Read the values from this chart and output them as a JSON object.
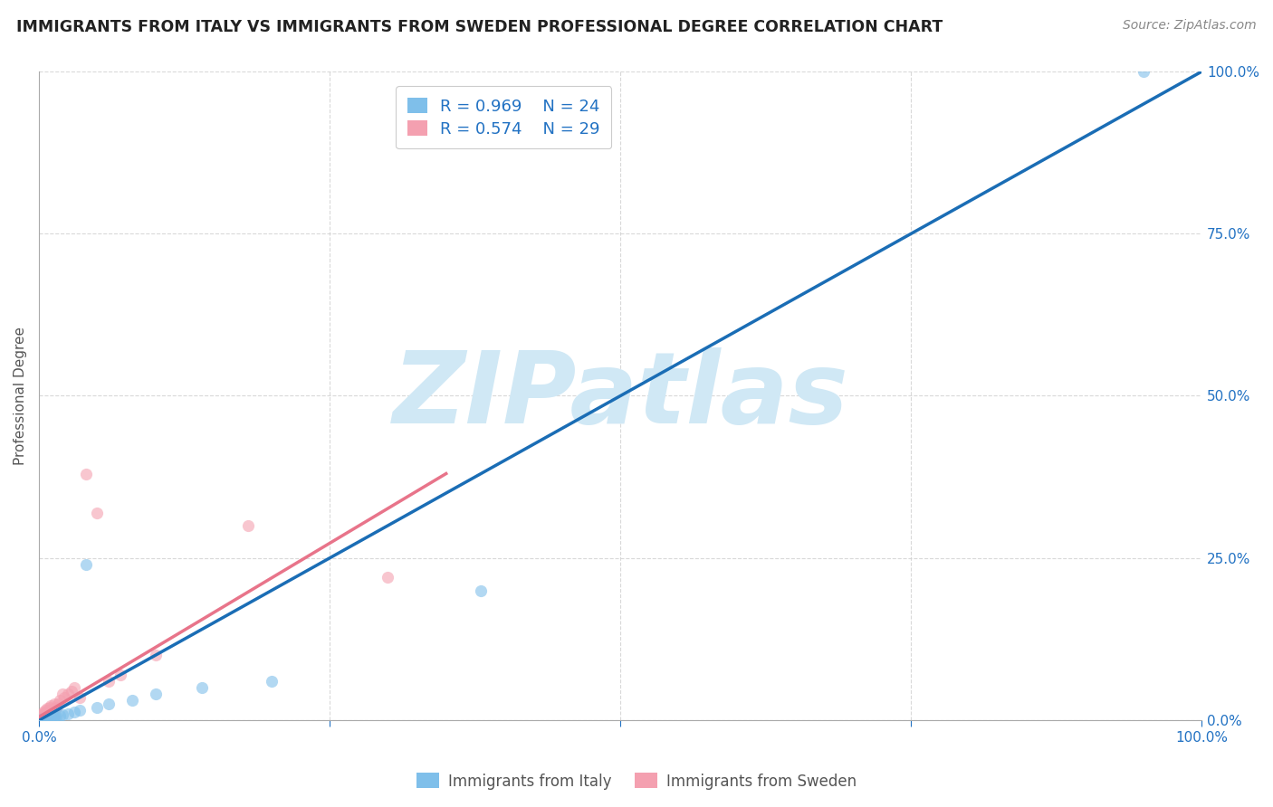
{
  "title": "IMMIGRANTS FROM ITALY VS IMMIGRANTS FROM SWEDEN PROFESSIONAL DEGREE CORRELATION CHART",
  "source": "Source: ZipAtlas.com",
  "ylabel": "Professional Degree",
  "xlim": [
    0,
    1
  ],
  "ylim": [
    0,
    1
  ],
  "italy_color": "#7fbfea",
  "sweden_color": "#f4a0b0",
  "italy_R": 0.969,
  "italy_N": 24,
  "sweden_R": 0.574,
  "sweden_N": 29,
  "italy_scatter_x": [
    0.0,
    0.002,
    0.003,
    0.005,
    0.007,
    0.008,
    0.01,
    0.012,
    0.013,
    0.015,
    0.018,
    0.02,
    0.025,
    0.03,
    0.035,
    0.04,
    0.05,
    0.06,
    0.08,
    0.1,
    0.14,
    0.2,
    0.38,
    0.95
  ],
  "italy_scatter_y": [
    0.0,
    0.001,
    0.002,
    0.003,
    0.004,
    0.003,
    0.005,
    0.004,
    0.006,
    0.005,
    0.007,
    0.008,
    0.01,
    0.012,
    0.015,
    0.24,
    0.02,
    0.025,
    0.03,
    0.04,
    0.05,
    0.06,
    0.2,
    1.0
  ],
  "sweden_scatter_x": [
    0.0,
    0.001,
    0.002,
    0.003,
    0.004,
    0.005,
    0.006,
    0.007,
    0.008,
    0.009,
    0.01,
    0.012,
    0.013,
    0.015,
    0.016,
    0.018,
    0.02,
    0.022,
    0.025,
    0.028,
    0.03,
    0.035,
    0.04,
    0.05,
    0.06,
    0.07,
    0.1,
    0.18,
    0.3
  ],
  "sweden_scatter_y": [
    0.0,
    0.005,
    0.008,
    0.01,
    0.012,
    0.015,
    0.013,
    0.018,
    0.016,
    0.02,
    0.022,
    0.018,
    0.025,
    0.02,
    0.025,
    0.03,
    0.04,
    0.035,
    0.04,
    0.045,
    0.05,
    0.035,
    0.38,
    0.32,
    0.06,
    0.07,
    0.1,
    0.3,
    0.22
  ],
  "italy_line_x": [
    0.0,
    1.0
  ],
  "italy_line_y": [
    0.0,
    1.0
  ],
  "italy_line_color": "#1a6db5",
  "sweden_line_x": [
    0.0,
    0.35
  ],
  "sweden_line_y": [
    0.005,
    0.38
  ],
  "sweden_line_color": "#e8748a",
  "diag_line_color": "#c0c0c0",
  "watermark_text": "ZIPatlas",
  "watermark_color": "#d0e8f5",
  "legend_italy_label": "Immigrants from Italy",
  "legend_sweden_label": "Immigrants from Sweden",
  "title_fontsize": 12.5,
  "axis_label_fontsize": 11,
  "tick_fontsize": 11,
  "legend_fontsize": 13,
  "background_color": "#ffffff",
  "grid_color": "#d0d0d0",
  "scatter_alpha": 0.6,
  "scatter_size": 90
}
